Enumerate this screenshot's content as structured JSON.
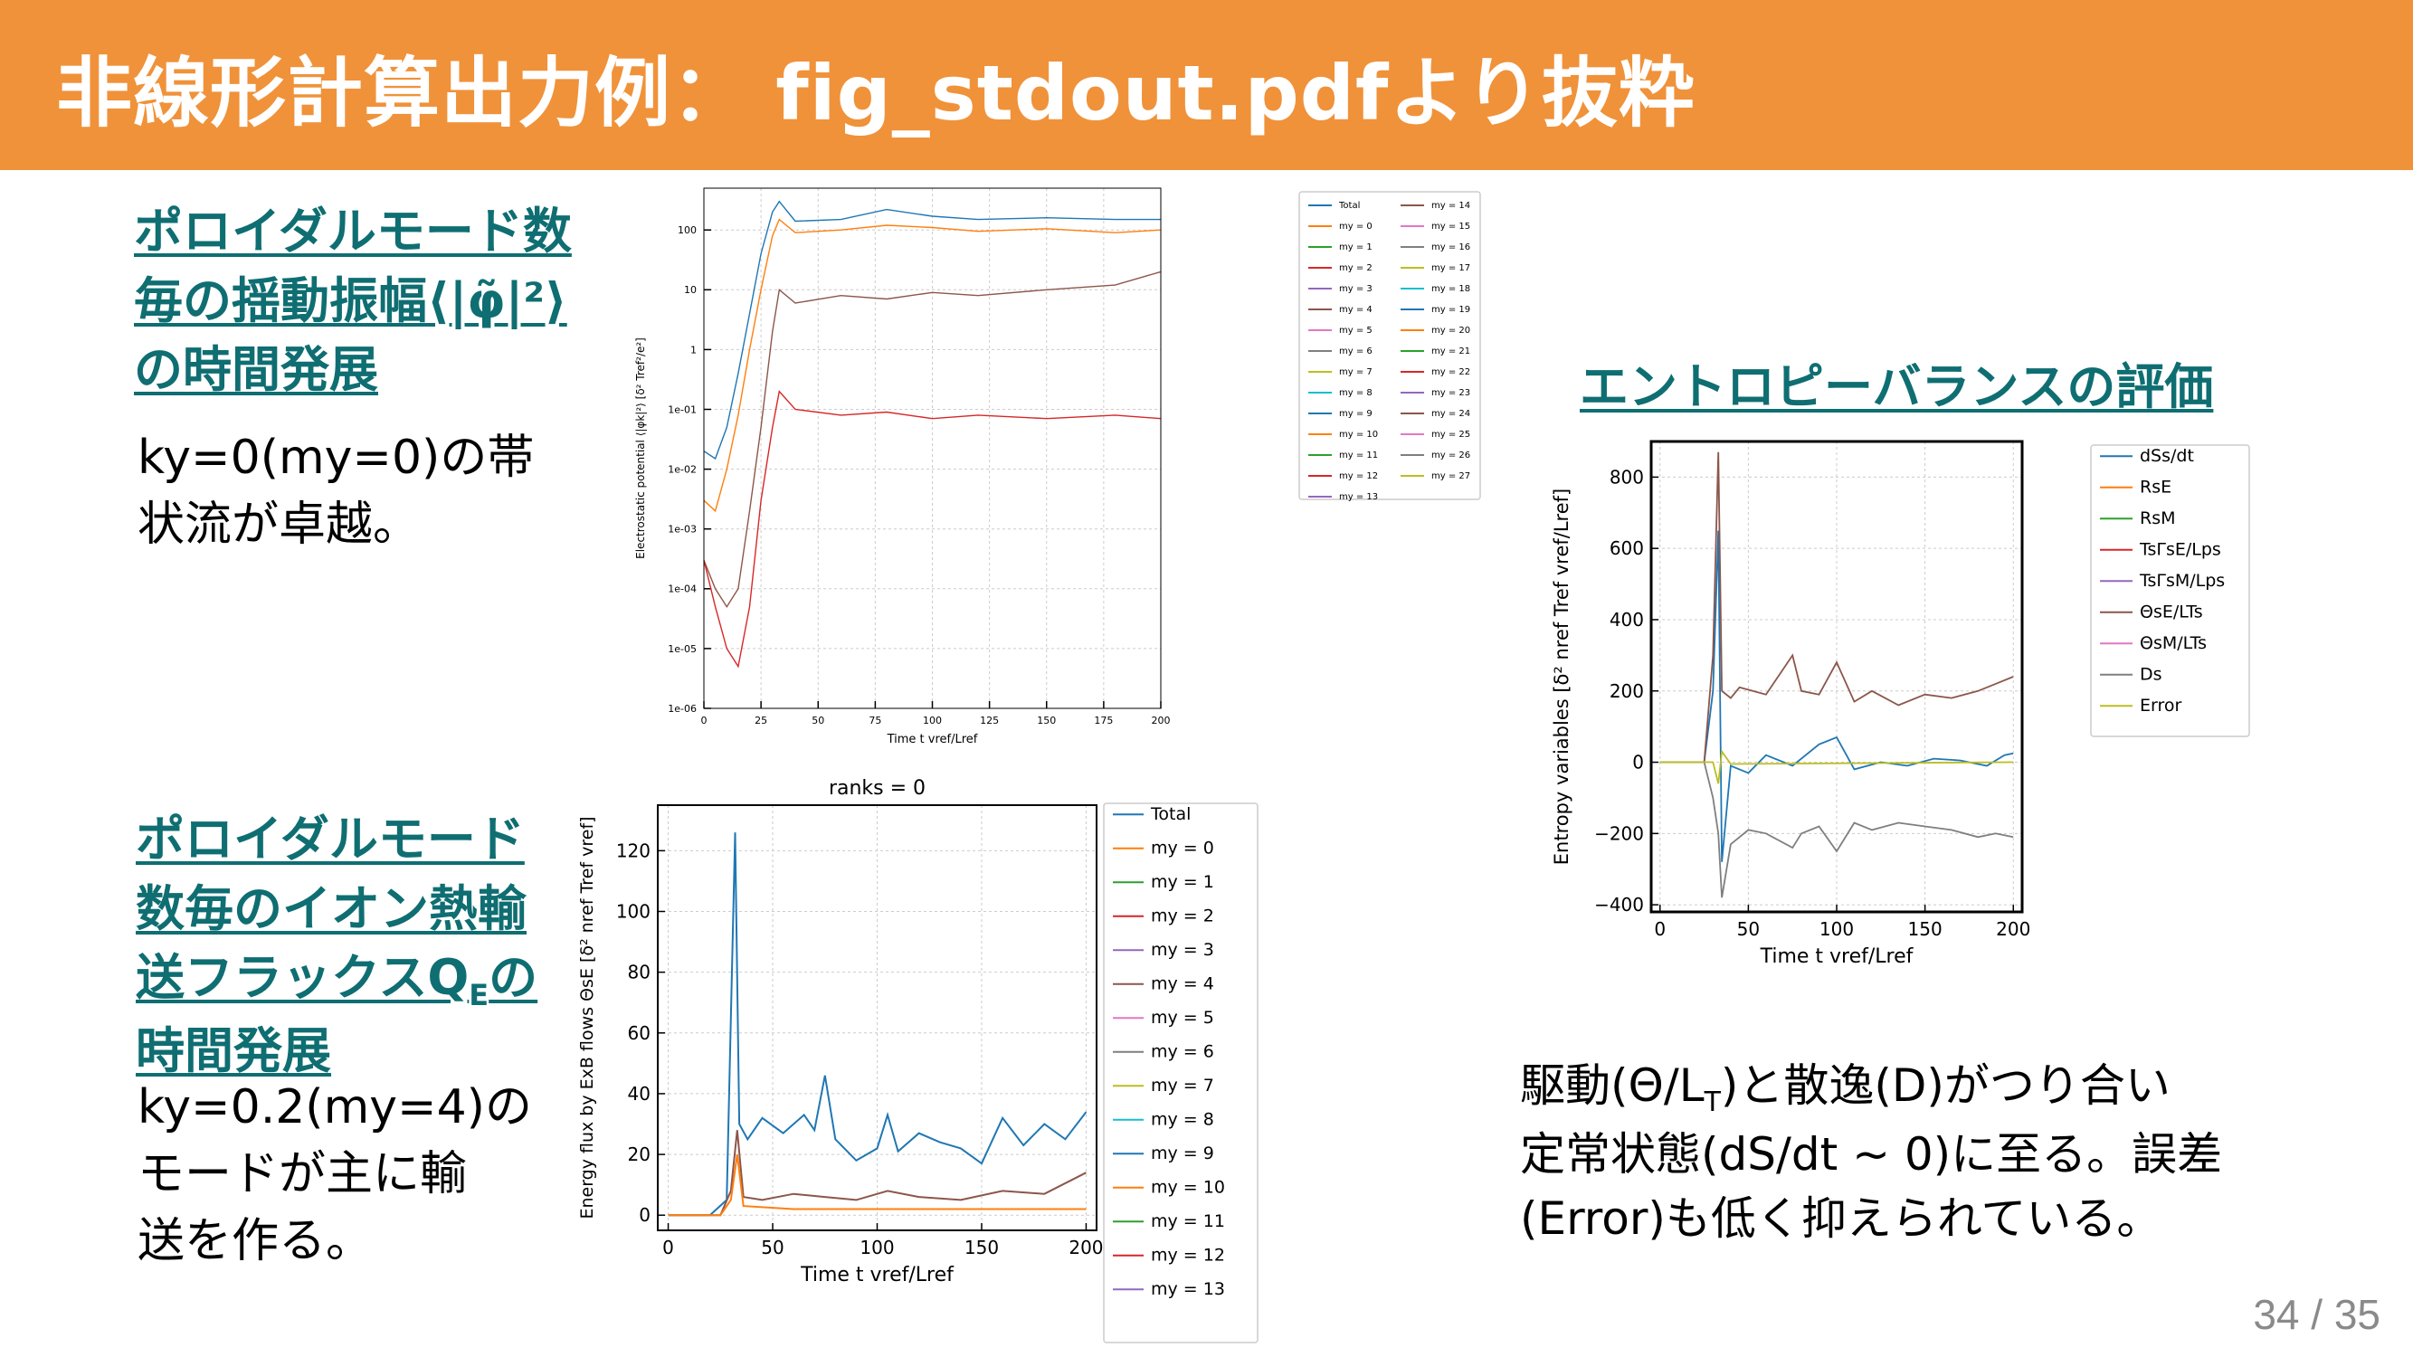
{
  "header": {
    "title": "非線形計算出力例： fig_stdout.pdfより抜粋",
    "bg_color": "#f0923a"
  },
  "sections": {
    "poloidal_heading": [
      "ポロイダルモード数",
      "毎の揺動振幅⟨|φ̃|²⟩",
      "の時間発展"
    ],
    "poloidal_text": [
      "ky=0(my=0)の帯",
      "状流が卓越。"
    ],
    "flux_heading": [
      "ポロイダルモード",
      "数毎のイオン熱輸",
      "送フラックスQ",
      "の",
      "時間発展"
    ],
    "flux_heading_sub": "E",
    "flux_text": [
      "ky=0.2(my=4)の",
      "モードが主に輸",
      "送を作る。"
    ],
    "entropy_heading": "エントロピーバランスの評価",
    "entropy_text": [
      "駆動(Θ/L",
      "T",
      ")と散逸(D)がつり合い",
      "定常状態(dS/dt ~ 0)に至る。誤差",
      "(Error)も低く抑えられている。"
    ]
  },
  "page": {
    "number": "34 / 35"
  },
  "chart_data": [
    {
      "type": "line",
      "title": "",
      "xlabel": "Time t v_ref/L_ref",
      "ylabel": "Electrostatic potential ⟨|φ_k|²⟩ [δ² T_ref²/e²]",
      "yscale": "log",
      "xlim": [
        0,
        200
      ],
      "ylim": [
        1e-06,
        500
      ],
      "x_ticks": [
        "0",
        "25",
        "50",
        "75",
        "100",
        "125",
        "150",
        "175",
        "200"
      ],
      "y_ticks": [
        "1e-06",
        "1e-05",
        "1e-04",
        "1e-03",
        "1e-02",
        "1e-01",
        "1",
        "10",
        "100"
      ],
      "legend": [
        "Total",
        "m_y = 0",
        "m_y = 1",
        "m_y = 2",
        "m_y = 3",
        "m_y = 4",
        "m_y = 5",
        "m_y = 6",
        "m_y = 7",
        "m_y = 8",
        "m_y = 9",
        "m_y = 10",
        "m_y = 11",
        "m_y = 12",
        "m_y = 13",
        "m_y = 14",
        "m_y = 15",
        "m_y = 16",
        "m_y = 17",
        "m_y = 18",
        "m_y = 19",
        "m_y = 20",
        "m_y = 21",
        "m_y = 22",
        "m_y = 23",
        "m_y = 24",
        "m_y = 25",
        "m_y = 26",
        "m_y = 27"
      ],
      "legend_placement": "right",
      "grid": true,
      "series": [
        {
          "name": "Total",
          "x": [
            0,
            5,
            10,
            15,
            20,
            25,
            30,
            33,
            40,
            60,
            80,
            100,
            120,
            150,
            180,
            200
          ],
          "values": [
            0.02,
            0.015,
            0.05,
            0.4,
            4,
            40,
            200,
            300,
            140,
            150,
            220,
            170,
            150,
            160,
            150,
            150
          ]
        },
        {
          "name": "m_y = 0",
          "x": [
            0,
            5,
            10,
            15,
            20,
            25,
            30,
            33,
            40,
            60,
            80,
            100,
            120,
            150,
            180,
            200
          ],
          "values": [
            0.003,
            0.002,
            0.01,
            0.08,
            1,
            10,
            80,
            150,
            90,
            100,
            120,
            110,
            95,
            105,
            90,
            100
          ]
        },
        {
          "name": "m_y = 4",
          "x": [
            0,
            5,
            10,
            15,
            20,
            25,
            30,
            33,
            40,
            60,
            80,
            100,
            120,
            150,
            180,
            200
          ],
          "values": [
            0.0003,
            0.0001,
            5e-05,
            0.0001,
            0.002,
            0.05,
            2,
            10,
            6,
            8,
            7,
            9,
            8,
            10,
            12,
            20
          ]
        },
        {
          "name": "m_y = 13",
          "x": [
            0,
            5,
            10,
            15,
            20,
            25,
            30,
            33,
            40,
            60,
            80,
            100,
            120,
            150,
            180,
            200
          ],
          "values": [
            0.0003,
            5e-05,
            1e-05,
            5e-06,
            5e-05,
            0.003,
            0.05,
            0.2,
            0.1,
            0.08,
            0.09,
            0.07,
            0.08,
            0.07,
            0.08,
            0.07
          ]
        }
      ]
    },
    {
      "type": "line",
      "title": "ranks = 0",
      "xlabel": "Time t v_ref/L_ref",
      "ylabel": "Energy flux by ExB flows Θ_sE [δ² n_ref T_ref v_ref]",
      "xlim": [
        -5,
        205
      ],
      "ylim": [
        -5,
        135
      ],
      "x_ticks": [
        "0",
        "50",
        "100",
        "150",
        "200"
      ],
      "y_ticks": [
        "0",
        "20",
        "40",
        "60",
        "80",
        "100",
        "120"
      ],
      "legend": [
        "Total",
        "m_y = 0",
        "m_y = 1",
        "m_y = 2",
        "m_y = 3",
        "m_y = 4",
        "m_y = 5",
        "m_y = 6",
        "m_y = 7",
        "m_y = 8",
        "m_y = 9",
        "m_y = 10",
        "m_y = 11",
        "m_y = 12",
        "m_y = 13"
      ],
      "legend_placement": "right",
      "grid": true,
      "series": [
        {
          "name": "Total",
          "x": [
            0,
            20,
            28,
            32,
            34,
            38,
            45,
            55,
            65,
            70,
            75,
            80,
            90,
            100,
            105,
            110,
            120,
            130,
            140,
            150,
            160,
            170,
            180,
            190,
            200
          ],
          "values": [
            0,
            0,
            5,
            126,
            30,
            25,
            32,
            27,
            33,
            28,
            46,
            25,
            18,
            22,
            33,
            21,
            27,
            24,
            22,
            17,
            32,
            23,
            30,
            25,
            34
          ]
        },
        {
          "name": "m_y = 4",
          "x": [
            0,
            25,
            30,
            33,
            36,
            45,
            60,
            75,
            90,
            105,
            120,
            140,
            160,
            180,
            200
          ],
          "values": [
            0,
            0,
            8,
            28,
            6,
            5,
            7,
            6,
            5,
            8,
            6,
            5,
            8,
            7,
            14
          ]
        },
        {
          "name": "m_y = 0",
          "x": [
            0,
            25,
            30,
            33,
            36,
            60,
            100,
            150,
            200
          ],
          "values": [
            0,
            0,
            5,
            20,
            3,
            2,
            2,
            2,
            2
          ]
        }
      ]
    },
    {
      "type": "line",
      "title": "",
      "xlabel": "Time t v_ref/L_ref",
      "ylabel": "Entropy variables [δ² n_ref T_ref v_ref/L_ref]",
      "xlim": [
        -5,
        205
      ],
      "ylim": [
        -420,
        900
      ],
      "x_ticks": [
        "0",
        "50",
        "100",
        "150",
        "200"
      ],
      "y_ticks": [
        "−400",
        "−200",
        "0",
        "200",
        "400",
        "600",
        "800"
      ],
      "legend": [
        "dS_s/dt",
        "R_sE",
        "R_sM",
        "T_sΓ_sE/L_ps",
        "T_sΓ_sM/L_ps",
        "Θ_sE/L_Ts",
        "Θ_sM/L_Ts",
        "D_s",
        "Error"
      ],
      "legend_placement": "right",
      "grid": true,
      "series": [
        {
          "name": "dS_s/dt",
          "x": [
            0,
            25,
            30,
            33,
            35,
            40,
            50,
            60,
            75,
            90,
            100,
            110,
            125,
            140,
            155,
            170,
            185,
            195,
            200
          ],
          "values": [
            0,
            0,
            200,
            650,
            -280,
            -10,
            -30,
            20,
            -10,
            50,
            70,
            -20,
            0,
            -10,
            10,
            5,
            -10,
            20,
            25
          ]
        },
        {
          "name": "Θ_sE/L_Ts",
          "x": [
            0,
            25,
            30,
            33,
            35,
            40,
            45,
            60,
            75,
            80,
            90,
            100,
            110,
            120,
            135,
            150,
            165,
            180,
            190,
            200
          ],
          "values": [
            0,
            0,
            300,
            870,
            200,
            180,
            210,
            190,
            300,
            200,
            190,
            280,
            170,
            200,
            160,
            190,
            180,
            200,
            220,
            240
          ]
        },
        {
          "name": "D_s",
          "x": [
            0,
            25,
            30,
            33,
            35,
            40,
            50,
            60,
            75,
            80,
            90,
            100,
            110,
            120,
            135,
            150,
            165,
            180,
            190,
            200
          ],
          "values": [
            0,
            0,
            -100,
            -200,
            -380,
            -230,
            -190,
            -200,
            -240,
            -200,
            -180,
            -250,
            -170,
            -190,
            -170,
            -180,
            -190,
            -210,
            -200,
            -210
          ]
        },
        {
          "name": "Error",
          "x": [
            0,
            30,
            33,
            35,
            40,
            200
          ],
          "values": [
            0,
            0,
            -60,
            30,
            -5,
            0
          ]
        }
      ]
    }
  ]
}
